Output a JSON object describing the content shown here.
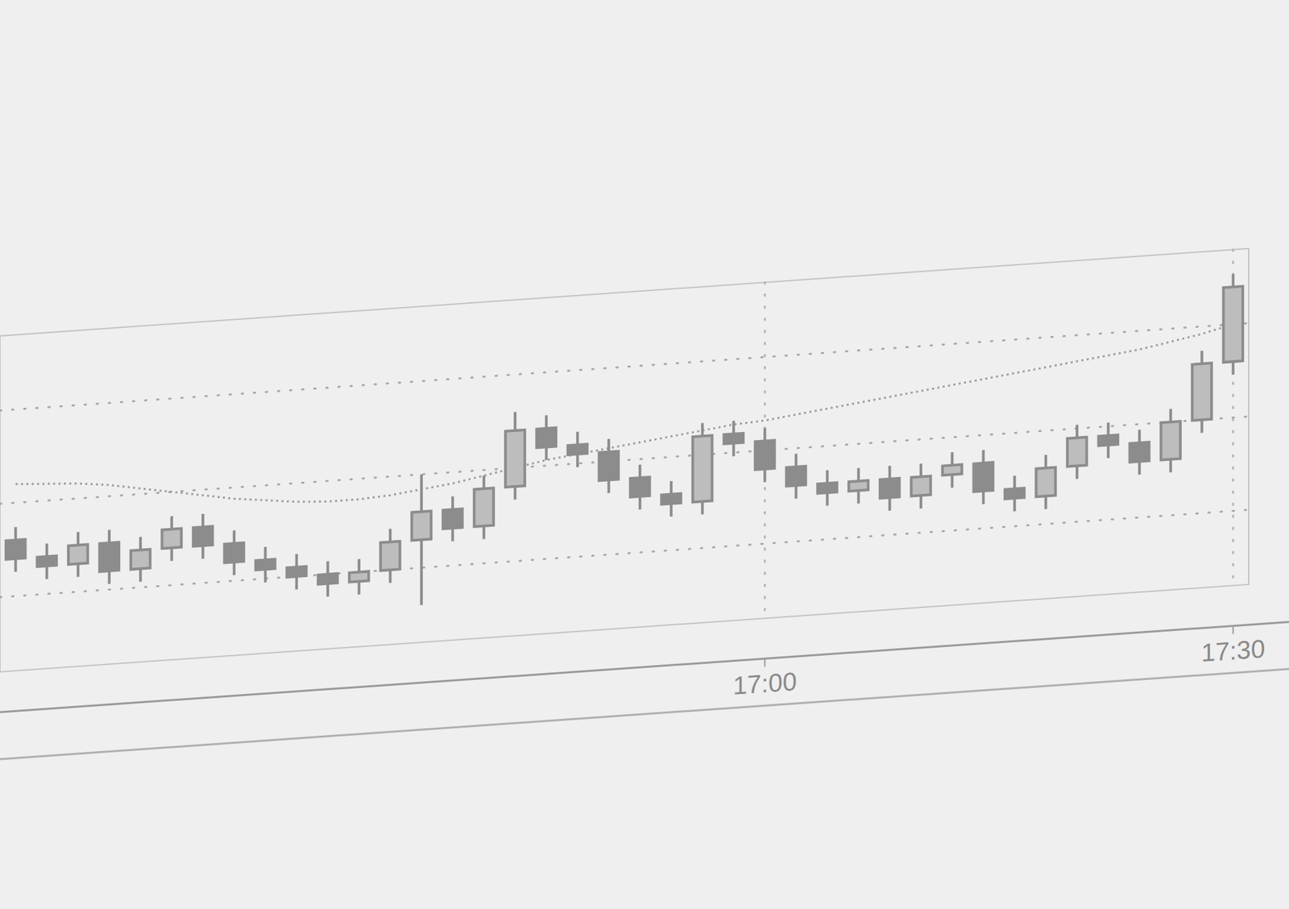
{
  "chart_data": {
    "type": "candlestick",
    "categories": [
      null,
      null,
      null,
      null,
      null,
      null,
      null,
      null,
      null,
      null,
      null,
      null,
      null,
      null,
      null,
      null,
      null,
      null,
      null,
      null,
      null,
      null,
      null,
      null,
      "17:00",
      null,
      null,
      null,
      null,
      null,
      null,
      null,
      null,
      null,
      null,
      null,
      null,
      null,
      null,
      "17:30"
    ],
    "open": [
      103,
      102,
      101.5,
      102.5,
      101,
      102,
      103,
      102,
      101,
      100.5,
      100,
      99.5,
      100,
      101.5,
      103,
      102,
      104,
      107,
      106,
      105.5,
      104,
      103,
      102.5,
      106,
      105.5,
      104,
      103,
      102.5,
      103,
      102,
      103,
      103.5,
      102,
      101.5,
      103,
      104.5,
      104,
      103,
      105,
      108
    ],
    "high": [
      103.7,
      102.7,
      103.2,
      103.2,
      102.7,
      103.7,
      103.7,
      102.7,
      101.7,
      101.2,
      100.7,
      100.7,
      102.2,
      105,
      103.7,
      104.7,
      108,
      107.7,
      106.7,
      106.2,
      104.7,
      103.7,
      106.7,
      106.7,
      106.2,
      104.7,
      103.7,
      103.7,
      103.7,
      103.7,
      104.2,
      104.2,
      102.7,
      103.7,
      105.2,
      105.2,
      104.7,
      105.7,
      108.7,
      112.7
    ],
    "low": [
      101.3,
      100.8,
      100.8,
      100.3,
      100.3,
      101.3,
      101.3,
      100.3,
      99.8,
      99.3,
      98.8,
      98.8,
      99.3,
      98,
      101.3,
      101.3,
      103.3,
      105.3,
      104.8,
      103.3,
      102.3,
      101.8,
      101.8,
      104.8,
      103.3,
      102.3,
      101.8,
      101.8,
      101.3,
      101.3,
      102.3,
      101.3,
      100.8,
      100.8,
      102.3,
      103.3,
      102.3,
      102.3,
      104.3,
      107.3
    ],
    "close": [
      102,
      101.5,
      102.5,
      101,
      102,
      103,
      102,
      101,
      100.5,
      100,
      99.5,
      100,
      101.5,
      103,
      102,
      104,
      107,
      106,
      105.5,
      104,
      103,
      102.5,
      106,
      105.5,
      104,
      103,
      102.5,
      103,
      102,
      103,
      103.5,
      102,
      101.5,
      103,
      104.5,
      104,
      103,
      105,
      108,
      112
    ],
    "moving_average": [
      106,
      105.9,
      105.8,
      105.6,
      105.3,
      105,
      104.7,
      104.4,
      104.2,
      104,
      103.9,
      103.9,
      104,
      104.2,
      104.4,
      104.7,
      105,
      105.3,
      105.5,
      105.7,
      105.9,
      106.1,
      106.3,
      106.5,
      106.6,
      106.8,
      107,
      107.2,
      107.4,
      107.6,
      107.8,
      108,
      108.2,
      108.4,
      108.6,
      108.8,
      109,
      109.3,
      109.6,
      110
    ],
    "line_style": "dotted",
    "color": "#8c8c8c",
    "ylim": [
      96,
      114
    ],
    "yticks": [
      100,
      105,
      110
    ],
    "grid": true,
    "tick_labels": "x"
  }
}
